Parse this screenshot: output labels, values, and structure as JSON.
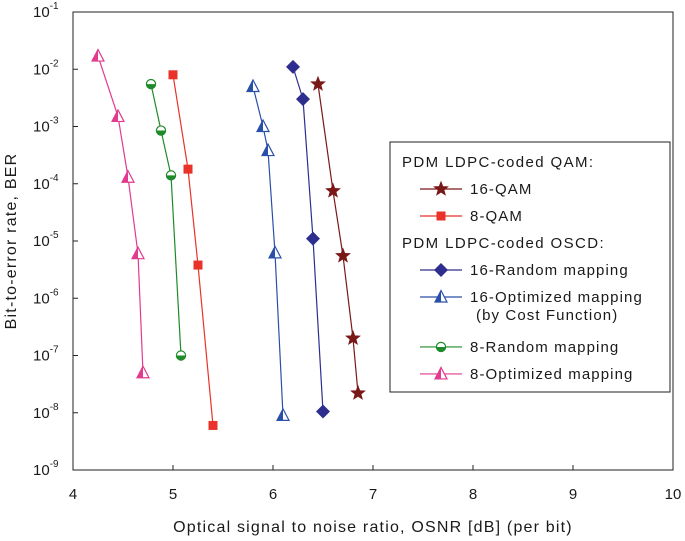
{
  "chart_data": {
    "type": "line",
    "title": "",
    "xlabel": "Optical signal to noise ratio, OSNR [dB] (per bit)",
    "ylabel": "Bit-to-error rate, BER",
    "xlim": [
      4,
      10
    ],
    "ylim_log10": [
      -9,
      -1
    ],
    "y_scale": "log",
    "grid": false,
    "legend_position": "right",
    "x_ticks": [
      "4",
      "5",
      "6",
      "7",
      "8",
      "9",
      "10"
    ],
    "y_ticks": [
      {
        "base": "10",
        "exp": "-1"
      },
      {
        "base": "10",
        "exp": "-2"
      },
      {
        "base": "10",
        "exp": "-3"
      },
      {
        "base": "10",
        "exp": "-4"
      },
      {
        "base": "10",
        "exp": "-5"
      },
      {
        "base": "10",
        "exp": "-6"
      },
      {
        "base": "10",
        "exp": "-7"
      },
      {
        "base": "10",
        "exp": "-8"
      },
      {
        "base": "10",
        "exp": "-9"
      }
    ],
    "legend_groups": [
      {
        "header": "PDM LDPC-coded QAM:",
        "series_indices": [
          0,
          1
        ]
      },
      {
        "header": "PDM LDPC-coded OSCD:",
        "series_indices": [
          2,
          3,
          4,
          5
        ]
      }
    ],
    "series": [
      {
        "name": "16-QAM",
        "marker": "star",
        "color": "#7a1818",
        "x": [
          6.45,
          6.6,
          6.7,
          6.8,
          6.85
        ],
        "y": [
          0.0055,
          7.5e-05,
          5.5e-06,
          2e-07,
          2.2e-08
        ]
      },
      {
        "name": "8-QAM",
        "marker": "square",
        "color": "#e8322a",
        "x": [
          5.0,
          5.15,
          5.25,
          5.4
        ],
        "y": [
          0.008,
          0.00018,
          3.8e-06,
          6e-09
        ]
      },
      {
        "name": "16-Random mapping",
        "marker": "diamond",
        "color": "#2e2e8f",
        "x": [
          6.2,
          6.3,
          6.4,
          6.5
        ],
        "y": [
          0.011,
          0.003,
          1.1e-05,
          1.05e-08
        ]
      },
      {
        "name": "16-Optimized mapping",
        "name_line2": "(by Cost Function)",
        "marker": "half-triangle",
        "color": "#2a4fa8",
        "x": [
          5.8,
          5.9,
          5.95,
          6.02,
          6.1
        ],
        "y": [
          0.005,
          0.001,
          0.00038,
          6.2e-06,
          9e-09
        ]
      },
      {
        "name": "8-Random mapping",
        "marker": "half-circle",
        "color": "#1f8a2a",
        "x": [
          4.78,
          4.88,
          4.98,
          5.08
        ],
        "y": [
          0.0055,
          0.00085,
          0.00014,
          1e-07
        ]
      },
      {
        "name": "8-Optimized mapping",
        "marker": "half-triangle",
        "color": "#e23a8e",
        "x": [
          4.25,
          4.45,
          4.55,
          4.65,
          4.7
        ],
        "y": [
          0.017,
          0.0015,
          0.00013,
          6e-06,
          5e-08
        ]
      }
    ]
  }
}
